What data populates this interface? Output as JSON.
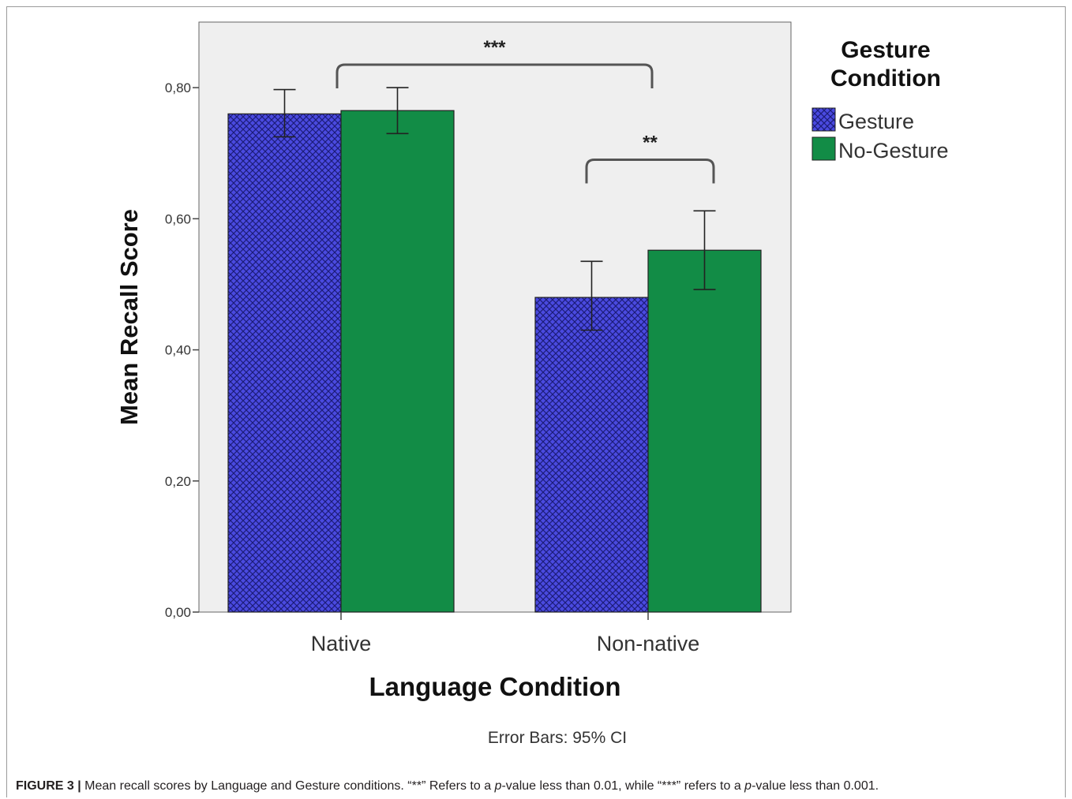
{
  "chart_data": {
    "type": "bar",
    "categories": [
      "Native",
      "Non-native"
    ],
    "series": [
      {
        "name": "Gesture",
        "values": [
          0.76,
          0.48
        ],
        "ci_low": [
          0.725,
          0.43
        ],
        "ci_high": [
          0.797,
          0.535
        ],
        "color": "#4040d8",
        "pattern": "crosshatch"
      },
      {
        "name": "No-Gesture",
        "values": [
          0.765,
          0.552
        ],
        "ci_low": [
          0.73,
          0.492
        ],
        "ci_high": [
          0.8,
          0.612
        ],
        "color": "#128c46",
        "pattern": "solid"
      }
    ],
    "xlabel": "Language Condition",
    "ylabel": "Mean Recall Score",
    "ylim": [
      0,
      0.9
    ],
    "yticks": [
      "0,00",
      "0,20",
      "0,40",
      "0,60",
      "0,80"
    ],
    "ytick_values": [
      0,
      0.2,
      0.4,
      0.6,
      0.8
    ],
    "legend_title": "Gesture Condition",
    "legend_title_lines": [
      "Gesture",
      "Condition"
    ],
    "legend_position": "outside-right",
    "note": "Error Bars: 95% CI",
    "plot_background": "#efefef",
    "annotations": [
      {
        "label": "***",
        "from": "Native gap",
        "to": "Non-native gap",
        "level": 0.835
      },
      {
        "label": "**",
        "from": "Non-native Gesture",
        "to": "Non-native No-Gesture",
        "level": 0.69
      }
    ]
  },
  "caption": {
    "label": "FIGURE 3 |",
    "text_before_p1": " Mean recall scores by Language and Gesture conditions. “**” Refers to a ",
    "p_symbol": "p",
    "text_between": "-value less than 0.01, while “***” refers to a ",
    "text_after_p2": "-value less than 0.001."
  }
}
